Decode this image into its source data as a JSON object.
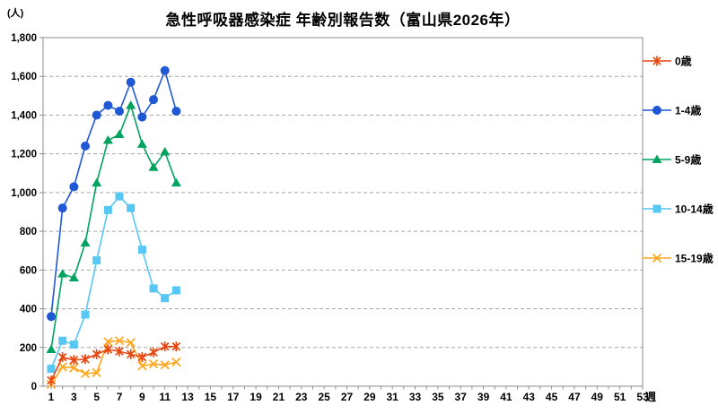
{
  "page": {
    "title": "急性呼吸器感染症 年齢別報告数（富山県2026年）",
    "y_unit_label": "(人)",
    "x_suffix_label": "週"
  },
  "colors": {
    "background": "#ffffff",
    "grid": "#a6a6a6",
    "axis": "#8c8c8c",
    "text": "#000000"
  },
  "chart_data": {
    "type": "line",
    "title": "急性呼吸器感染症 年齢別報告数（富山県2026年）",
    "xlabel": "週",
    "ylabel": "(人)",
    "x": [
      1,
      2,
      3,
      4,
      5,
      6,
      7,
      8,
      9,
      10,
      11,
      12
    ],
    "x_axis_tick_labels": [
      1,
      3,
      5,
      7,
      9,
      11,
      13,
      15,
      17,
      19,
      21,
      23,
      25,
      27,
      29,
      31,
      33,
      35,
      37,
      39,
      41,
      43,
      45,
      47,
      49,
      51,
      53
    ],
    "x_range": [
      1,
      53
    ],
    "ylim": [
      0,
      1800
    ],
    "y_ticks": [
      0,
      200,
      400,
      600,
      800,
      1000,
      1200,
      1400,
      1600,
      1800
    ],
    "y_tick_labels": [
      "0",
      "200",
      "400",
      "600",
      "800",
      "1,000",
      "1,200",
      "1,400",
      "1,600",
      "1,800"
    ],
    "grid": "horizontal-dashed",
    "legend_position": "right",
    "series": [
      {
        "name": "0歳",
        "marker": "asterisk",
        "color": "#e8470f",
        "values": [
          30,
          150,
          135,
          140,
          165,
          190,
          180,
          165,
          150,
          175,
          205,
          205
        ]
      },
      {
        "name": "1-4歳",
        "marker": "circle",
        "color": "#2057d5",
        "values": [
          360,
          920,
          1030,
          1240,
          1400,
          1450,
          1420,
          1570,
          1390,
          1480,
          1630,
          1420
        ]
      },
      {
        "name": "5-9歳",
        "marker": "triangle",
        "color": "#00a35f",
        "values": [
          190,
          580,
          560,
          740,
          1050,
          1270,
          1300,
          1450,
          1250,
          1130,
          1210,
          1050
        ]
      },
      {
        "name": "10-14歳",
        "marker": "square",
        "color": "#57c7f4",
        "values": [
          90,
          235,
          215,
          370,
          650,
          910,
          980,
          920,
          705,
          505,
          455,
          495
        ]
      },
      {
        "name": "15-19歳",
        "marker": "x",
        "color": "#ffa61c",
        "values": [
          10,
          100,
          95,
          65,
          70,
          230,
          235,
          225,
          105,
          115,
          110,
          125
        ]
      }
    ]
  }
}
